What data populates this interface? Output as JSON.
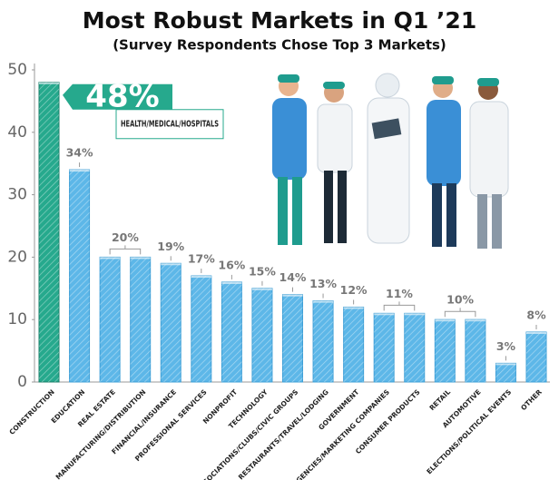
{
  "chart_data": {
    "type": "bar",
    "title": "Most Robust Markets in Q1 ’21",
    "subtitle": "(Survey Respondents Chose Top 3 Markets)",
    "categories": [
      "CONSTRUCTION",
      "EDUCATION",
      "REAL ESTATE",
      "MANUFACTURING/DISTRIBUTION",
      "FINANCIAL/INSURANCE",
      "PROFESSIONAL SERVICES",
      "NONPROFIT",
      "TECHNOLOGY",
      "ASSOCIATIONS/CLUBS/CIVIC GROUPS",
      "RESTAURANTS/TRAVEL/LODGING",
      "GOVERNMENT",
      "AD AGENCIES/MARKETING COMPANIES",
      "CONSUMER PRODUCTS",
      "RETAIL",
      "AUTOMOTIVE",
      "ELECTIONS/POLITICAL EVENTS",
      "OTHER"
    ],
    "values": [
      48,
      34,
      20,
      20,
      19,
      17,
      16,
      15,
      14,
      13,
      12,
      11,
      11,
      10,
      10,
      3,
      8
    ],
    "value_labels": [
      "48%",
      "34%",
      "20%",
      null,
      "19%",
      "17%",
      "16%",
      "15%",
      "14%",
      "13%",
      "12%",
      "11%",
      null,
      "10%",
      null,
      "3%",
      "8%"
    ],
    "colors": [
      "#26a98d",
      "#5db7e8",
      "#5db7e8",
      "#5db7e8",
      "#5db7e8",
      "#5db7e8",
      "#5db7e8",
      "#5db7e8",
      "#5db7e8",
      "#5db7e8",
      "#5db7e8",
      "#5db7e8",
      "#5db7e8",
      "#5db7e8",
      "#5db7e8",
      "#5db7e8",
      "#5db7e8"
    ],
    "annotation": "HEALTH/MEDICAL/HOSPITALS",
    "ylim": [
      0,
      50
    ],
    "yticks": [
      0,
      10,
      20,
      30,
      40,
      50
    ],
    "grid": false
  }
}
